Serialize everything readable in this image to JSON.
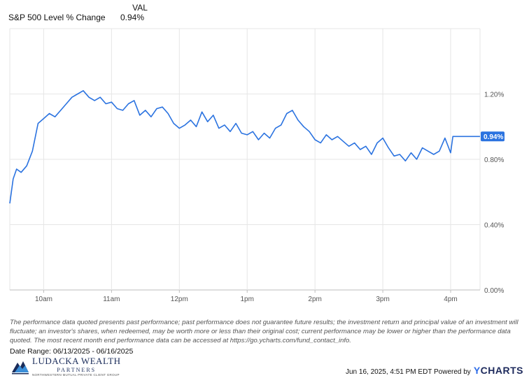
{
  "legend": {
    "column_header": "VAL",
    "series_name": "S&P 500 Level % Change",
    "series_value": "0.94%"
  },
  "colors": {
    "series": "#2b73e0",
    "grid": "#e6e6e6",
    "axis_text": "#555555"
  },
  "chart_data": {
    "type": "line",
    "title": "",
    "xlabel": "",
    "ylabel": "",
    "x_unit": "time of day (ET), 06/16/2025",
    "x_ticks": [
      "10am",
      "11am",
      "12pm",
      "1pm",
      "2pm",
      "3pm",
      "4pm"
    ],
    "y_ticks": [
      "0.00%",
      "0.40%",
      "0.80%",
      "1.20%"
    ],
    "ylim": [
      0.0,
      1.6
    ],
    "grid": true,
    "last_value_label": "0.94%",
    "series": [
      {
        "name": "S&P 500 Level % Change",
        "x": [
          "09:30",
          "09:33",
          "09:36",
          "09:40",
          "09:45",
          "09:50",
          "09:55",
          "10:00",
          "10:05",
          "10:10",
          "10:15",
          "10:20",
          "10:25",
          "10:30",
          "10:35",
          "10:40",
          "10:45",
          "10:50",
          "10:55",
          "11:00",
          "11:05",
          "11:10",
          "11:15",
          "11:20",
          "11:25",
          "11:30",
          "11:35",
          "11:40",
          "11:45",
          "11:50",
          "11:55",
          "12:00",
          "12:05",
          "12:10",
          "12:15",
          "12:20",
          "12:25",
          "12:30",
          "12:35",
          "12:40",
          "12:45",
          "12:50",
          "12:55",
          "13:00",
          "13:05",
          "13:10",
          "13:15",
          "13:20",
          "13:25",
          "13:30",
          "13:35",
          "13:40",
          "13:45",
          "13:50",
          "13:55",
          "14:00",
          "14:05",
          "14:10",
          "14:15",
          "14:20",
          "14:25",
          "14:30",
          "14:35",
          "14:40",
          "14:45",
          "14:50",
          "14:55",
          "15:00",
          "15:05",
          "15:10",
          "15:15",
          "15:20",
          "15:25",
          "15:30",
          "15:35",
          "15:40",
          "15:45",
          "15:50",
          "15:55",
          "16:00",
          "16:02"
        ],
        "values": [
          0.53,
          0.68,
          0.74,
          0.72,
          0.76,
          0.85,
          1.02,
          1.05,
          1.08,
          1.06,
          1.1,
          1.14,
          1.18,
          1.2,
          1.22,
          1.18,
          1.16,
          1.18,
          1.14,
          1.15,
          1.11,
          1.1,
          1.14,
          1.16,
          1.07,
          1.1,
          1.06,
          1.11,
          1.12,
          1.08,
          1.02,
          0.99,
          1.01,
          1.04,
          1.0,
          1.09,
          1.03,
          1.07,
          0.99,
          1.01,
          0.97,
          1.02,
          0.96,
          0.95,
          0.97,
          0.92,
          0.96,
          0.93,
          0.99,
          1.01,
          1.08,
          1.1,
          1.04,
          1.0,
          0.97,
          0.92,
          0.9,
          0.95,
          0.92,
          0.94,
          0.91,
          0.88,
          0.9,
          0.86,
          0.88,
          0.83,
          0.9,
          0.93,
          0.87,
          0.82,
          0.83,
          0.79,
          0.84,
          0.8,
          0.87,
          0.85,
          0.83,
          0.85,
          0.93,
          0.84,
          0.94
        ]
      }
    ]
  },
  "disclaimer": "The performance data quoted presents past performance; past performance does not guarantee future results; the investment return and principal value of an investment will fluctuate; an investor's shares, when redeemed, may be worth more or less than their original cost; current performance may be lower or higher than the performance data quoted. The most recent month end performance data can be accessed at https://go.ycharts.com/fund_contact_info.",
  "date_range": "Date Range: 06/13/2025 - 06/16/2025",
  "logo": {
    "line1": "LUDACKA WEALTH",
    "line2": "PARTNERS",
    "line3": "NORTHWESTERN MUTUAL PRIVATE CLIENT GROUP"
  },
  "footer": {
    "timestamp": "Jun 16, 2025, 4:51 PM EDT Powered by",
    "brand_mark": "Y",
    "brand_rest": "CHARTS"
  }
}
